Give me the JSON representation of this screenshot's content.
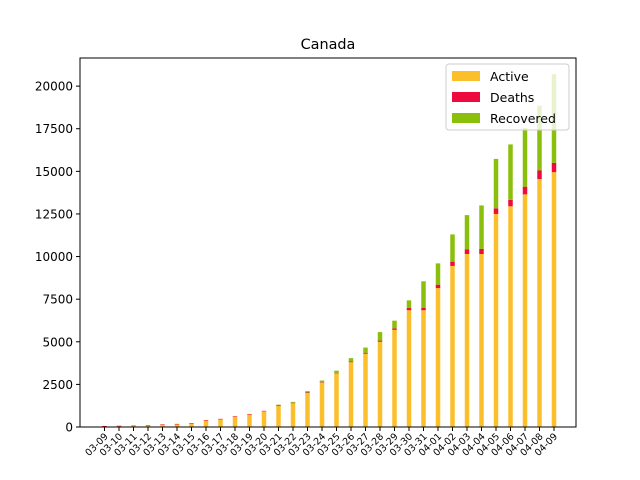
{
  "chart_data": {
    "type": "bar",
    "stacked": true,
    "title": "Canada",
    "xlabel": "",
    "ylabel": "",
    "ylim": [
      0,
      21650
    ],
    "yticks": [
      0,
      2500,
      5000,
      7500,
      10000,
      12500,
      15000,
      17500,
      20000
    ],
    "legend_position": "top-right",
    "grid": false,
    "categories": [
      "03-09",
      "03-10",
      "03-11",
      "03-12",
      "03-13",
      "03-14",
      "03-15",
      "03-16",
      "03-17",
      "03-18",
      "03-19",
      "03-20",
      "03-21",
      "03-22",
      "03-23",
      "03-24",
      "03-25",
      "03-26",
      "03-27",
      "03-28",
      "03-29",
      "03-30",
      "03-31",
      "04-01",
      "04-02",
      "04-03",
      "04-04",
      "04-05",
      "04-06",
      "04-07",
      "04-08",
      "04-09"
    ],
    "series": [
      {
        "name": "Active",
        "color": "#fbbf2c",
        "values": [
          60,
          70,
          80,
          100,
          150,
          180,
          230,
          400,
          470,
          620,
          750,
          930,
          1240,
          1400,
          2000,
          2600,
          3150,
          3800,
          4300,
          5000,
          5700,
          6850,
          6850,
          8150,
          9450,
          10150,
          10150,
          12500,
          12950,
          13650,
          14550,
          14950
        ]
      },
      {
        "name": "Deaths",
        "color": "#ee0a3e",
        "values": [
          1,
          1,
          1,
          1,
          1,
          1,
          1,
          4,
          8,
          12,
          13,
          20,
          20,
          24,
          25,
          27,
          35,
          40,
          60,
          70,
          90,
          130,
          150,
          200,
          250,
          280,
          300,
          330,
          380,
          450,
          500,
          550
        ]
      },
      {
        "name": "Recovered",
        "color": "#8ac00b",
        "values": [
          0,
          0,
          0,
          0,
          0,
          0,
          0,
          0,
          0,
          0,
          0,
          0,
          50,
          50,
          80,
          100,
          120,
          200,
          300,
          500,
          450,
          450,
          1550,
          1250,
          1600,
          2000,
          2550,
          2900,
          3250,
          3450,
          3800,
          5200
        ]
      }
    ]
  }
}
